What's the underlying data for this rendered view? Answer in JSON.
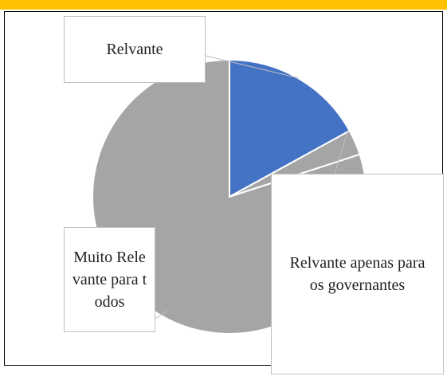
{
  "chart_data": {
    "type": "pie",
    "categories": [
      "Relvante",
      "Relvante apenas para os governantes",
      "Muito Relevante para todos"
    ],
    "values": [
      17,
      3,
      80
    ],
    "colors": [
      "#4472c4",
      "#a5a5a5",
      "#a5a5a5"
    ]
  }
}
